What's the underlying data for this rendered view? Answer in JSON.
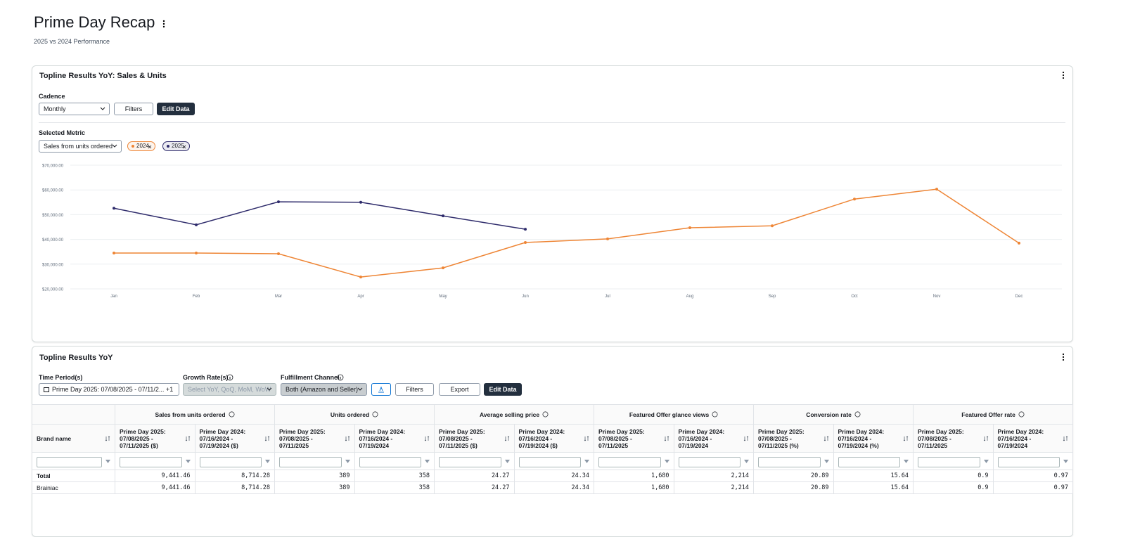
{
  "header": {
    "title": "Prime Day Recap",
    "subtitle": "2025 vs 2024 Performance"
  },
  "sales_card": {
    "title": "Topline Results YoY: Sales & Units",
    "cadence_label": "Cadence",
    "cadence": "Monthly",
    "filters": "Filters",
    "edit": "Edit Data",
    "metric_label": "Selected Metric",
    "metric": "Sales from units ordered"
  },
  "chart_data": {
    "type": "line",
    "categories": [
      "Jan",
      "Feb",
      "Mar",
      "Apr",
      "May",
      "Jun",
      "Jul",
      "Aug",
      "Sep",
      "Oct",
      "Nov",
      "Dec"
    ],
    "series": [
      {
        "name": "2024",
        "color": "#ee8535",
        "values": [
          34500,
          34500,
          34200,
          24800,
          28500,
          38750,
          40200,
          44700,
          45500,
          56300,
          60300,
          38500
        ]
      },
      {
        "name": "2025",
        "color": "#2e2b6b",
        "values": [
          52600,
          45900,
          55200,
          55000,
          49500,
          44100,
          null,
          null,
          null,
          null,
          null,
          null
        ]
      }
    ],
    "ylim": [
      20000,
      70000
    ],
    "yticks": [
      {
        "value": 20000,
        "label": "$20,000.00"
      },
      {
        "value": 30000,
        "label": "$30,000.00"
      },
      {
        "value": 40000,
        "label": "$40,000.00"
      },
      {
        "value": 50000,
        "label": "$50,000.00"
      },
      {
        "value": 60000,
        "label": "$60,000.00"
      },
      {
        "value": 70000,
        "label": "$70,000.00"
      }
    ],
    "grid": true
  },
  "table_card": {
    "title": "Topline Results YoY",
    "time_label": "Time Period(s)",
    "time": "Prime Day 2025: 07/08/2025 - 07/11/2... +1",
    "growth_label": "Growth Rate(s)",
    "growth": "Select YoY, QoQ, MoM, WoW",
    "channel_label": "Fulfillment Channel",
    "channel": "Both (Amazon and Seller)",
    "filters": "Filters",
    "export": "Export",
    "edit": "Edit Data",
    "table": {
      "brand_header": "Brand name",
      "groups": [
        {
          "name": "Sales from units ordered",
          "columns": [
            "Prime Day 2025: 07/08/2025 - 07/11/2025 ($)",
            "Prime Day 2024: 07/16/2024 - 07/19/2024 ($)"
          ]
        },
        {
          "name": "Units ordered",
          "columns": [
            "Prime Day 2025: 07/08/2025 - 07/11/2025",
            "Prime Day 2024: 07/16/2024 - 07/19/2024"
          ]
        },
        {
          "name": "Average selling price",
          "columns": [
            "Prime Day 2025: 07/08/2025 - 07/11/2025 ($)",
            "Prime Day 2024: 07/16/2024 - 07/19/2024 ($)"
          ]
        },
        {
          "name": "Featured Offer glance views",
          "columns": [
            "Prime Day 2025: 07/08/2025 - 07/11/2025",
            "Prime Day 2024: 07/16/2024 - 07/19/2024"
          ]
        },
        {
          "name": "Conversion rate",
          "columns": [
            "Prime Day 2025: 07/08/2025 - 07/11/2025 (%)",
            "Prime Day 2024: 07/16/2024 - 07/19/2024 (%)"
          ]
        },
        {
          "name": "Featured Offer rate",
          "columns": [
            "Prime Day 2025: 07/08/2025 - 07/11/2025",
            "Prime Day 2024: 07/16/2024 - 07/19/2024"
          ]
        }
      ],
      "rows": [
        {
          "brand": "Total",
          "cells": [
            "9,441.46",
            "8,714.28",
            "389",
            "358",
            "24.27",
            "24.34",
            "1,680",
            "2,214",
            "20.89",
            "15.64",
            "0.9",
            "0.97"
          ]
        },
        {
          "brand": "Brainiac",
          "cells": [
            "9,441.46",
            "8,714.28",
            "389",
            "358",
            "24.27",
            "24.34",
            "1,680",
            "2,214",
            "20.89",
            "15.64",
            "0.9",
            "0.97"
          ]
        }
      ]
    }
  }
}
